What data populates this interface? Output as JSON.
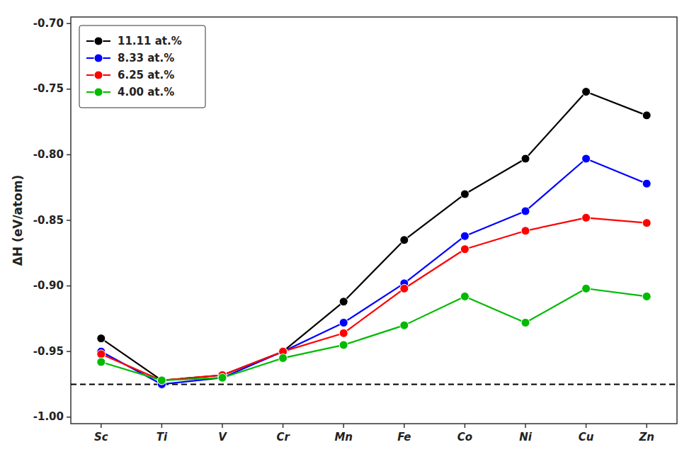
{
  "chart_data": {
    "type": "line",
    "y_label": "ΔH (eV/atom)",
    "categories": [
      "Sc",
      "Ti",
      "V",
      "Cr",
      "Mn",
      "Fe",
      "Co",
      "Ni",
      "Cu",
      "Zn"
    ],
    "series": [
      {
        "name": "11.11 at.%",
        "color": "#000000",
        "values": [
          -0.94,
          -0.972,
          -0.968,
          -0.95,
          -0.912,
          -0.865,
          -0.83,
          -0.803,
          -0.752,
          -0.77
        ]
      },
      {
        "name": "8.33 at.%",
        "color": "#0000FF",
        "values": [
          -0.95,
          -0.975,
          -0.97,
          -0.95,
          -0.928,
          -0.898,
          -0.862,
          -0.843,
          -0.803,
          -0.822
        ]
      },
      {
        "name": "6.25 at.%",
        "color": "#FF0000",
        "values": [
          -0.952,
          -0.972,
          -0.968,
          -0.95,
          -0.936,
          -0.902,
          -0.872,
          -0.858,
          -0.848,
          -0.852
        ]
      },
      {
        "name": "4.00 at.%",
        "color": "#00BB00",
        "values": [
          -0.958,
          -0.972,
          -0.97,
          -0.955,
          -0.945,
          -0.93,
          -0.908,
          -0.928,
          -0.902,
          -0.908
        ]
      }
    ],
    "reference_line": {
      "y": -0.975,
      "line_style": "dashed",
      "color": "#000000"
    },
    "ylim": [
      -1.005,
      -0.695
    ],
    "yticks": [
      {
        "value": -1.0,
        "label": "-1.00"
      },
      -0.95,
      {
        "value": -0.9,
        "label": "-0.90"
      },
      -0.85,
      {
        "value": -0.8,
        "label": "-0.80"
      },
      -0.75,
      {
        "value": -0.7,
        "label": "-0.70"
      }
    ],
    "marker": "circle",
    "grid": false,
    "legend": "upper-left"
  }
}
